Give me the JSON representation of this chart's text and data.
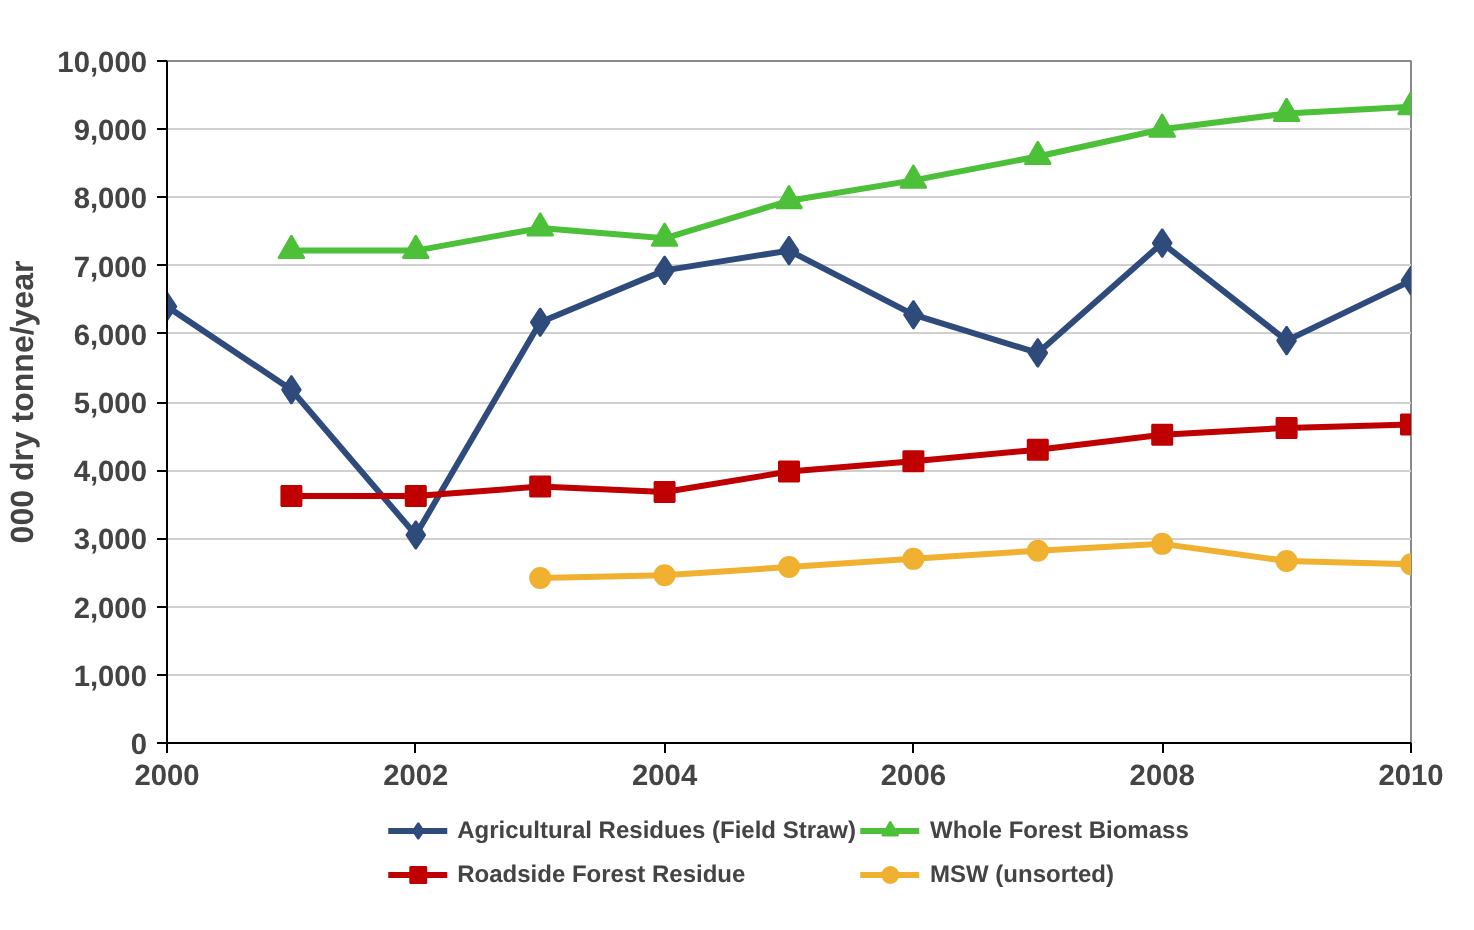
{
  "chart_data": {
    "type": "line",
    "ylabel": "000 dry tonne/year",
    "xlim": [
      2000,
      2010
    ],
    "xticks": [
      2000,
      2002,
      2004,
      2006,
      2008,
      2010
    ],
    "ylim": [
      0,
      10000
    ],
    "yticks": [
      {
        "value": 0,
        "label": "0"
      },
      {
        "value": 1000,
        "label": "1,000"
      },
      {
        "value": 2000,
        "label": "2,000"
      },
      {
        "value": 3000,
        "label": "3,000"
      },
      {
        "value": 4000,
        "label": "4,000"
      },
      {
        "value": 5000,
        "label": "5,000"
      },
      {
        "value": 6000,
        "label": "6,000"
      },
      {
        "value": 7000,
        "label": "7,000"
      },
      {
        "value": 8000,
        "label": "8,000"
      },
      {
        "value": 9000,
        "label": "9,000"
      },
      {
        "value": 10000,
        "label": "10,000"
      }
    ],
    "grid": "y",
    "legend": "bottom",
    "series": [
      {
        "name": "Agricultural Residues (Field Straw)",
        "color": "#2f4b7c",
        "marker": "diamond",
        "x": [
          2000,
          2001,
          2002,
          2003,
          2004,
          2005,
          2006,
          2007,
          2008,
          2009,
          2010
        ],
        "values": [
          6400,
          5180,
          3050,
          6170,
          6930,
          7220,
          6280,
          5720,
          7330,
          5900,
          6780
        ]
      },
      {
        "name": "Roadside Forest Residue",
        "color": "#c00000",
        "marker": "square",
        "x": [
          2001,
          2002,
          2003,
          2004,
          2005,
          2006,
          2007,
          2008,
          2009,
          2010
        ],
        "values": [
          3620,
          3620,
          3760,
          3680,
          3980,
          4130,
          4300,
          4520,
          4620,
          4670
        ]
      },
      {
        "name": "Whole Forest Biomass",
        "color": "#4cc038",
        "marker": "triangle",
        "x": [
          2001,
          2002,
          2003,
          2004,
          2005,
          2006,
          2007,
          2008,
          2009,
          2010
        ],
        "values": [
          7220,
          7220,
          7550,
          7400,
          7950,
          8250,
          8600,
          9000,
          9230,
          9330
        ]
      },
      {
        "name": "MSW (unsorted)",
        "color": "#f0b030",
        "marker": "circle",
        "x": [
          2003,
          2004,
          2005,
          2006,
          2007,
          2008,
          2009,
          2010
        ],
        "values": [
          2420,
          2460,
          2580,
          2700,
          2820,
          2920,
          2670,
          2620
        ]
      }
    ]
  }
}
